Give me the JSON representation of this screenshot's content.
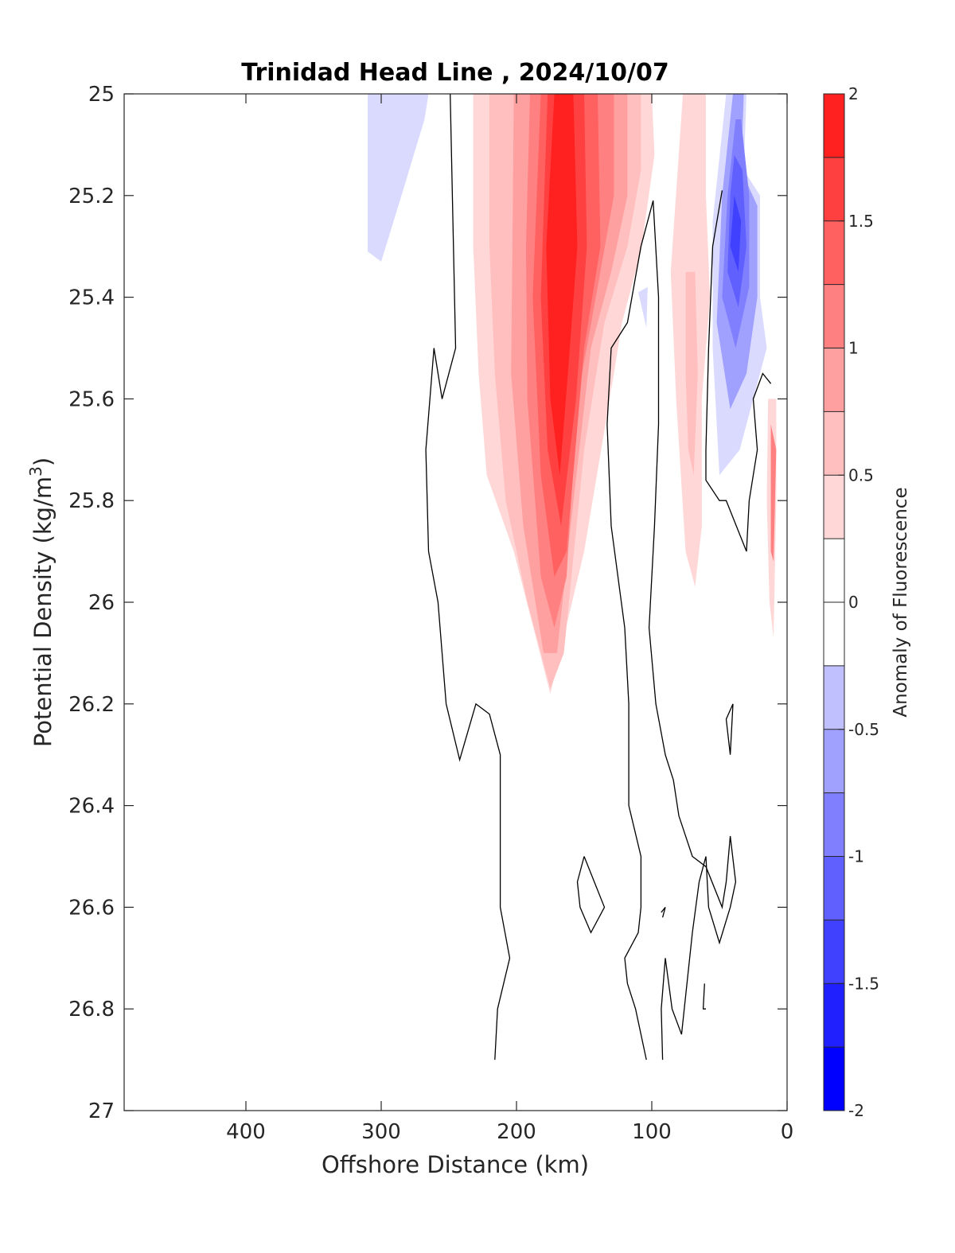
{
  "chart_data": {
    "type": "contour",
    "title": "Trinidad Head Line , 2024/10/07",
    "xlabel": "Offshore Distance (km)",
    "ylabel": "Potential Density (kg/m",
    "ylabel_sup": "3",
    "ylabel_close": ")",
    "colorbar_label": "Anomaly of Fluorescence",
    "xlim": [
      490,
      0
    ],
    "x_reversed": true,
    "ylim": [
      25,
      27
    ],
    "y_reversed": true,
    "x_ticks": [
      400,
      300,
      200,
      100,
      0
    ],
    "x_tick_labels": [
      "400",
      "300",
      "200",
      "100",
      "0"
    ],
    "y_ticks": [
      25,
      25.2,
      25.4,
      25.6,
      25.8,
      26,
      26.2,
      26.4,
      26.6,
      26.8,
      27
    ],
    "y_tick_labels": [
      "25",
      "25.2",
      "25.4",
      "25.6",
      "25.8",
      "26",
      "26.2",
      "26.4",
      "26.6",
      "26.8",
      "27"
    ],
    "colorbar": {
      "lim": [
        -2,
        2
      ],
      "tick_values": [
        -2,
        -1.5,
        -1,
        -0.5,
        0,
        0.5,
        1,
        1.5,
        2
      ],
      "tick_labels": [
        "-2",
        "-1.5",
        "-1",
        "-0.5",
        "0",
        "0.5",
        "1",
        "1.5",
        "2"
      ],
      "levels": [
        {
          "from": -2.0,
          "to": -1.75,
          "color": "#0000ff"
        },
        {
          "from": -1.75,
          "to": -1.5,
          "color": "#2020ff"
        },
        {
          "from": -1.5,
          "to": -1.25,
          "color": "#4040ff"
        },
        {
          "from": -1.25,
          "to": -1.0,
          "color": "#6060ff"
        },
        {
          "from": -1.0,
          "to": -0.75,
          "color": "#8080ff"
        },
        {
          "from": -0.75,
          "to": -0.5,
          "color": "#a0a0ff"
        },
        {
          "from": -0.5,
          "to": -0.25,
          "color": "#c0c0ff"
        },
        {
          "from": -0.25,
          "to": 0.0,
          "color": "#ffffff"
        },
        {
          "from": 0.0,
          "to": 0.25,
          "color": "#ffffff"
        },
        {
          "from": 0.25,
          "to": 0.5,
          "color": "#ffd7d7"
        },
        {
          "from": 0.5,
          "to": 0.75,
          "color": "#ffbfbf"
        },
        {
          "from": 0.75,
          "to": 1.0,
          "color": "#ffa0a0"
        },
        {
          "from": 1.0,
          "to": 1.25,
          "color": "#ff8080"
        },
        {
          "from": 1.25,
          "to": 1.5,
          "color": "#ff6060"
        },
        {
          "from": 1.5,
          "to": 1.75,
          "color": "#ff4040"
        },
        {
          "from": 1.75,
          "to": 2.0,
          "color": "#ff2020"
        }
      ]
    },
    "filled_regions": [
      {
        "level": -0.5,
        "color": "#dadaff",
        "points": [
          [
            310,
            25.0
          ],
          [
            265,
            25.0
          ],
          [
            268,
            25.05
          ],
          [
            285,
            25.2
          ],
          [
            300,
            25.33
          ],
          [
            310,
            25.31
          ]
        ]
      },
      {
        "level": 0.25,
        "color": "#ffd7d7",
        "points": [
          [
            232,
            25.0
          ],
          [
            100,
            25.0
          ],
          [
            98,
            25.12
          ],
          [
            108,
            25.31
          ],
          [
            122,
            25.45
          ],
          [
            128,
            25.55
          ],
          [
            150,
            25.9
          ],
          [
            175,
            26.18
          ],
          [
            202,
            25.9
          ],
          [
            222,
            25.75
          ],
          [
            228,
            25.55
          ],
          [
            232,
            25.3
          ]
        ]
      },
      {
        "level": 0.5,
        "color": "#ffbfbf",
        "points": [
          [
            220,
            25.0
          ],
          [
            108,
            25.0
          ],
          [
            108,
            25.15
          ],
          [
            118,
            25.3
          ],
          [
            135,
            25.45
          ],
          [
            150,
            25.7
          ],
          [
            165,
            26.1
          ],
          [
            175,
            26.17
          ],
          [
            192,
            26.0
          ],
          [
            208,
            25.8
          ],
          [
            216,
            25.55
          ],
          [
            220,
            25.3
          ]
        ]
      },
      {
        "level": 0.75,
        "color": "#ffa0a0",
        "points": [
          [
            202,
            25.0
          ],
          [
            118,
            25.0
          ],
          [
            118,
            25.2
          ],
          [
            130,
            25.35
          ],
          [
            145,
            25.5
          ],
          [
            160,
            25.85
          ],
          [
            170,
            26.1
          ],
          [
            180,
            26.1
          ],
          [
            195,
            25.85
          ],
          [
            204,
            25.55
          ],
          [
            203,
            25.3
          ]
        ]
      },
      {
        "level": 1.0,
        "color": "#ff8080",
        "points": [
          [
            190,
            25.0
          ],
          [
            128,
            25.0
          ],
          [
            128,
            25.2
          ],
          [
            140,
            25.38
          ],
          [
            155,
            25.6
          ],
          [
            163,
            25.95
          ],
          [
            172,
            26.05
          ],
          [
            182,
            25.95
          ],
          [
            192,
            25.6
          ],
          [
            193,
            25.3
          ]
        ]
      },
      {
        "level": 1.25,
        "color": "#ff6060",
        "points": [
          [
            182,
            25.0
          ],
          [
            140,
            25.0
          ],
          [
            138,
            25.3
          ],
          [
            150,
            25.5
          ],
          [
            163,
            25.9
          ],
          [
            172,
            25.95
          ],
          [
            182,
            25.75
          ],
          [
            188,
            25.4
          ]
        ]
      },
      {
        "level": 1.5,
        "color": "#ff4040",
        "points": [
          [
            177,
            25.0
          ],
          [
            150,
            25.0
          ],
          [
            148,
            25.3
          ],
          [
            156,
            25.6
          ],
          [
            167,
            25.85
          ],
          [
            177,
            25.7
          ],
          [
            182,
            25.4
          ]
        ]
      },
      {
        "level": 1.75,
        "color": "#ff2020",
        "points": [
          [
            172,
            25.0
          ],
          [
            158,
            25.0
          ],
          [
            155,
            25.3
          ],
          [
            162,
            25.55
          ],
          [
            168,
            25.75
          ],
          [
            175,
            25.6
          ],
          [
            178,
            25.3
          ]
        ]
      },
      {
        "level": 0.25,
        "color": "#ffd7d7",
        "points": [
          [
            77,
            25.0
          ],
          [
            60,
            25.0
          ],
          [
            60,
            25.2
          ],
          [
            57,
            25.4
          ],
          [
            63,
            25.6
          ],
          [
            63,
            25.85
          ],
          [
            68,
            25.97
          ],
          [
            75,
            25.9
          ],
          [
            82,
            25.6
          ],
          [
            86,
            25.35
          ]
        ]
      },
      {
        "level": 0.5,
        "color": "#ffbfbf",
        "points": [
          [
            75,
            25.35
          ],
          [
            68,
            25.35
          ],
          [
            66,
            25.55
          ],
          [
            69,
            25.75
          ],
          [
            73,
            25.7
          ],
          [
            75,
            25.55
          ]
        ]
      },
      {
        "level": -0.25,
        "color": "#dadaff",
        "points": [
          [
            45,
            25.0
          ],
          [
            30,
            25.0
          ],
          [
            32,
            25.15
          ],
          [
            20,
            25.2
          ],
          [
            20,
            25.4
          ],
          [
            15,
            25.5
          ],
          [
            25,
            25.6
          ],
          [
            35,
            25.7
          ],
          [
            50,
            25.75
          ],
          [
            55,
            25.5
          ],
          [
            55,
            25.25
          ]
        ]
      },
      {
        "level": -0.75,
        "color": "#a0a0ff",
        "points": [
          [
            40,
            25.0
          ],
          [
            32,
            25.0
          ],
          [
            34,
            25.15
          ],
          [
            22,
            25.22
          ],
          [
            22,
            25.4
          ],
          [
            30,
            25.55
          ],
          [
            42,
            25.62
          ],
          [
            52,
            25.45
          ],
          [
            48,
            25.2
          ]
        ]
      },
      {
        "level": -1.0,
        "color": "#8080ff",
        "points": [
          [
            38,
            25.05
          ],
          [
            34,
            25.05
          ],
          [
            28,
            25.2
          ],
          [
            28,
            25.38
          ],
          [
            38,
            25.5
          ],
          [
            48,
            25.4
          ],
          [
            44,
            25.2
          ]
        ]
      },
      {
        "level": -1.25,
        "color": "#6060ff",
        "points": [
          [
            39,
            25.12
          ],
          [
            33,
            25.15
          ],
          [
            30,
            25.3
          ],
          [
            36,
            25.42
          ],
          [
            44,
            25.35
          ],
          [
            42,
            25.2
          ]
        ]
      },
      {
        "level": -1.5,
        "color": "#4040ff",
        "points": [
          [
            39,
            25.2
          ],
          [
            34,
            25.25
          ],
          [
            36,
            25.35
          ],
          [
            42,
            25.3
          ]
        ]
      },
      {
        "level": 0.25,
        "color": "#ffd7d7",
        "points": [
          [
            14,
            25.6
          ],
          [
            8,
            25.6
          ],
          [
            8,
            25.8
          ],
          [
            10,
            26.07
          ],
          [
            13,
            26.0
          ],
          [
            15,
            25.8
          ]
        ]
      },
      {
        "level": 0.75,
        "color": "#ff8080",
        "points": [
          [
            12,
            25.65
          ],
          [
            8,
            25.7
          ],
          [
            10,
            25.92
          ],
          [
            12,
            25.9
          ]
        ]
      },
      {
        "level": -0.25,
        "color": "#dadaff",
        "points": [
          [
            110,
            25.39
          ],
          [
            103,
            25.38
          ],
          [
            104,
            25.46
          ]
        ]
      }
    ],
    "contour_lines_value_0": [
      [
        [
          249,
          25.0
        ],
        [
          245,
          25.5
        ],
        [
          255,
          25.6
        ],
        [
          261,
          25.5
        ],
        [
          267,
          25.7
        ],
        [
          265,
          25.9
        ],
        [
          258,
          26.0
        ],
        [
          252,
          26.2
        ],
        [
          242,
          26.31
        ],
        [
          230,
          26.2
        ],
        [
          220,
          26.22
        ],
        [
          212,
          26.3
        ],
        [
          212,
          26.6
        ],
        [
          205,
          26.7
        ],
        [
          214,
          26.8
        ],
        [
          216,
          26.9
        ]
      ],
      [
        [
          99,
          25.21
        ],
        [
          108,
          25.3
        ],
        [
          118,
          25.45
        ],
        [
          130,
          25.5
        ],
        [
          133,
          25.65
        ],
        [
          130,
          25.85
        ],
        [
          120,
          26.05
        ],
        [
          117,
          26.2
        ],
        [
          117,
          26.4
        ],
        [
          108,
          26.5
        ],
        [
          108,
          26.6
        ],
        [
          110,
          26.65
        ],
        [
          120,
          26.7
        ],
        [
          118,
          26.75
        ],
        [
          112,
          26.8
        ],
        [
          104,
          26.9
        ]
      ],
      [
        [
          99,
          25.21
        ],
        [
          95,
          25.4
        ],
        [
          95,
          25.65
        ],
        [
          98,
          25.85
        ],
        [
          102,
          26.05
        ],
        [
          97,
          26.2
        ],
        [
          90,
          26.3
        ],
        [
          84,
          26.35
        ],
        [
          80,
          26.42
        ],
        [
          70,
          26.5
        ],
        [
          60,
          26.52
        ],
        [
          48,
          26.6
        ],
        [
          45,
          26.55
        ],
        [
          42,
          26.46
        ],
        [
          38,
          26.55
        ],
        [
          42,
          26.6
        ],
        [
          50,
          26.67
        ],
        [
          58,
          26.6
        ],
        [
          60,
          26.5
        ],
        [
          65,
          26.55
        ],
        [
          70,
          26.65
        ],
        [
          78,
          26.85
        ],
        [
          85,
          26.8
        ],
        [
          90,
          26.7
        ],
        [
          93,
          26.8
        ],
        [
          92,
          26.9
        ]
      ],
      [
        [
          48,
          25.19
        ],
        [
          55,
          25.3
        ],
        [
          58,
          25.5
        ],
        [
          60,
          25.7
        ],
        [
          60,
          25.76
        ],
        [
          50,
          25.8
        ],
        [
          45,
          25.8
        ],
        [
          30,
          25.9
        ],
        [
          28,
          25.8
        ],
        [
          22,
          25.7
        ],
        [
          25,
          25.6
        ],
        [
          18,
          25.55
        ],
        [
          12,
          25.57
        ]
      ],
      [
        [
          40,
          26.2
        ],
        [
          45,
          26.23
        ],
        [
          42,
          26.3
        ],
        [
          40,
          26.2
        ]
      ],
      [
        [
          150,
          26.5
        ],
        [
          155,
          26.55
        ],
        [
          153,
          26.6
        ],
        [
          145,
          26.65
        ],
        [
          135,
          26.6
        ],
        [
          150,
          26.5
        ]
      ],
      [
        [
          93,
          26.61
        ],
        [
          90,
          26.6
        ],
        [
          92,
          26.62
        ]
      ],
      [
        [
          61,
          26.75
        ],
        [
          62,
          26.8
        ],
        [
          60,
          26.8
        ]
      ]
    ]
  }
}
